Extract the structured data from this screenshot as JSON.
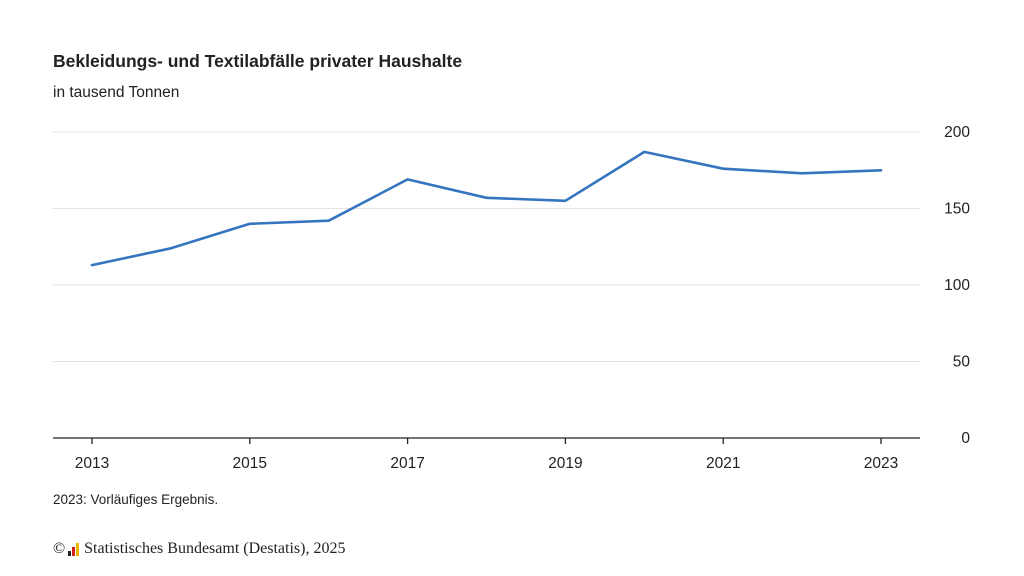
{
  "chart_data": {
    "type": "line",
    "title": "Bekleidungs- und Textilabfälle privater Haushalte",
    "subtitle": "in tausend Tonnen",
    "x": [
      2013,
      2014,
      2015,
      2016,
      2017,
      2018,
      2019,
      2020,
      2021,
      2022,
      2023
    ],
    "series": [
      {
        "values": [
          113,
          124,
          140,
          142,
          169,
          157,
          155,
          187,
          176,
          173,
          175
        ],
        "color": "#3575c0"
      }
    ],
    "x_tick_labels": [
      "2013",
      "2015",
      "2017",
      "2019",
      "2021",
      "2023"
    ],
    "y_tick_labels": [
      "0",
      "50",
      "100",
      "150",
      "200"
    ],
    "ylim": [
      0,
      200
    ],
    "y_axis_position": "right",
    "grid": true
  },
  "footnote": "2023: Vorläufiges Ergebnis.",
  "source": {
    "copyright_symbol": "©",
    "text": "Statistisches Bundesamt (Destatis), 2025",
    "logo_icon": "destatis-logo-icon",
    "logo_colors": [
      "#222222",
      "#d11f1f",
      "#e8b400"
    ]
  }
}
